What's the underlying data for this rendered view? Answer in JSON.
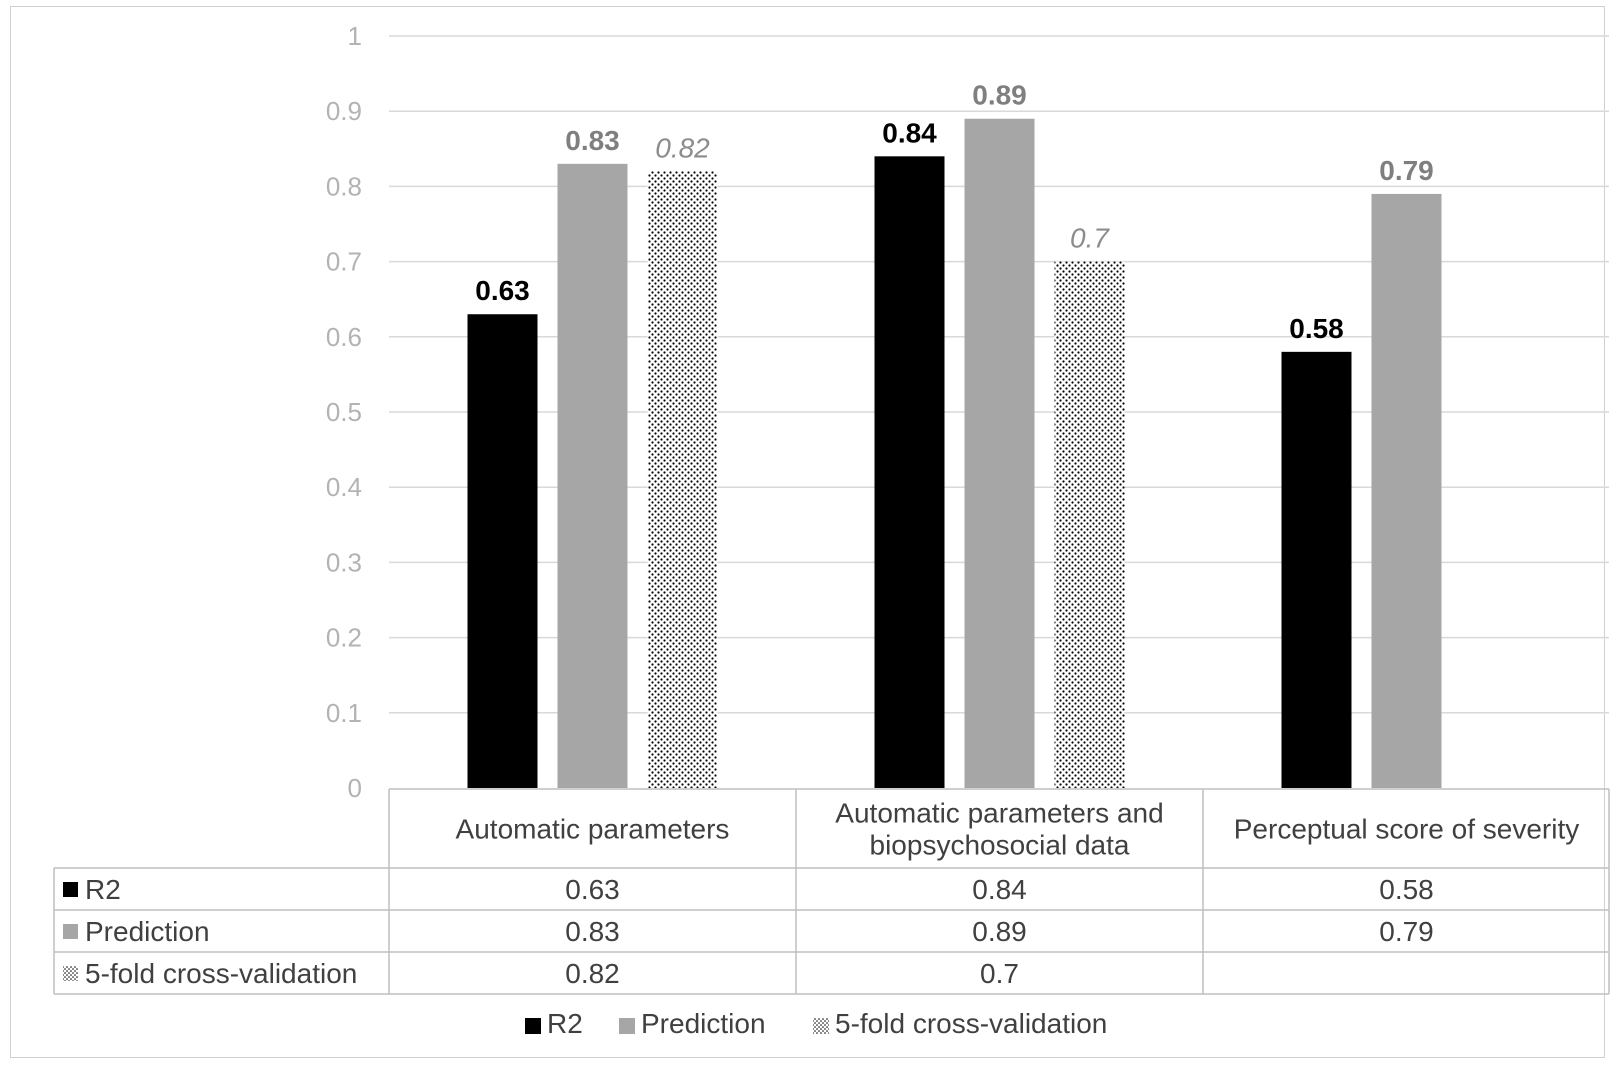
{
  "chart_data": {
    "type": "bar",
    "categories": [
      [
        "Automatic parameters"
      ],
      [
        "Automatic parameters and",
        "biopsychosocial data"
      ],
      [
        "Perceptual score of severity"
      ]
    ],
    "series": [
      {
        "name": "R2",
        "values": [
          0.63,
          0.84,
          0.58
        ],
        "labels": [
          "0.63",
          "0.84",
          "0.58"
        ],
        "table": [
          "0.63",
          "0.84",
          "0.58"
        ],
        "color": "#000000",
        "fill": "solid"
      },
      {
        "name": "Prediction",
        "values": [
          0.83,
          0.89,
          0.79
        ],
        "labels": [
          "0.83",
          "0.89",
          "0.79"
        ],
        "table": [
          "0.83",
          "0.89",
          "0.79"
        ],
        "color": "#a6a6a6",
        "fill": "solid"
      },
      {
        "name": "5-fold cross-validation",
        "values": [
          0.82,
          0.7,
          null
        ],
        "labels": [
          "0.82",
          "0.7",
          ""
        ],
        "table": [
          "0.82",
          "0.7",
          ""
        ],
        "color": "#000000",
        "fill": "dotted"
      }
    ],
    "yticks": [
      "0",
      "0.1",
      "0.2",
      "0.3",
      "0.4",
      "0.5",
      "0.6",
      "0.7",
      "0.8",
      "0.9",
      "1"
    ],
    "ylim": [
      0,
      1
    ],
    "grid": true,
    "legend": "bottom",
    "data_table": true
  }
}
